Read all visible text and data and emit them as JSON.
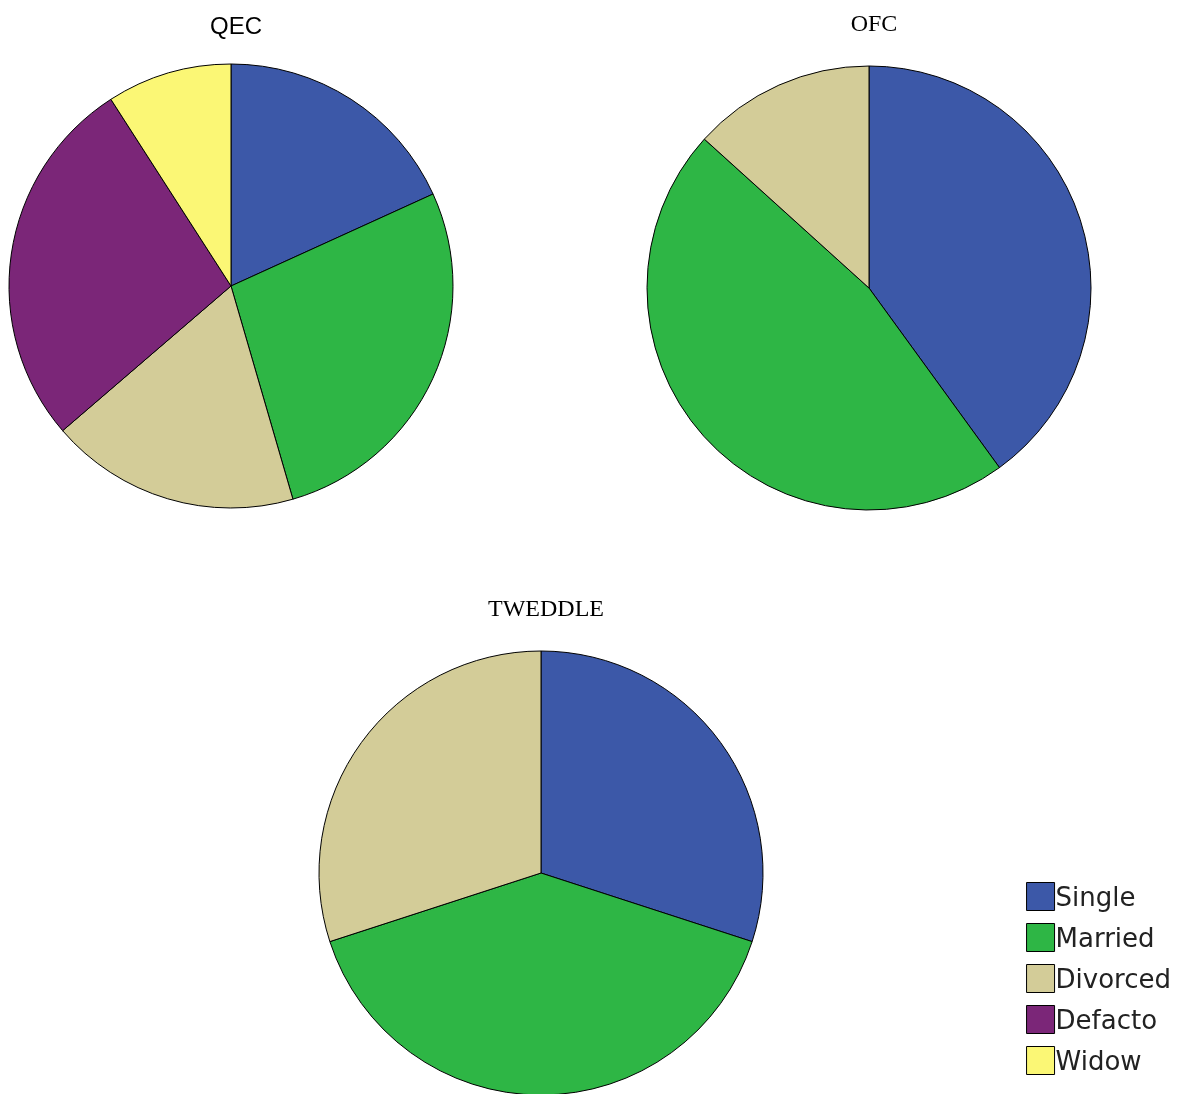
{
  "chart_data": [
    {
      "type": "pie",
      "title": "QEC",
      "categories": [
        "Single",
        "Married",
        "Divorced",
        "Defacto",
        "Widow"
      ],
      "values": [
        18.2,
        27.3,
        18.2,
        27.2,
        9.1
      ],
      "colors": [
        "#3c58a8",
        "#2eb645",
        "#d3cc98",
        "#7b2678",
        "#fbf775"
      ],
      "legend": "bottom right"
    },
    {
      "type": "pie",
      "title": "OFC",
      "categories": [
        null,
        null,
        null
      ],
      "values": [
        40,
        46.7,
        13.3
      ],
      "colors": [
        "#3c58a8",
        "#2eb645",
        "#d3cc98"
      ]
    },
    {
      "type": "pie",
      "title": "TWEDDLE",
      "categories": [
        null,
        null,
        null
      ],
      "values": [
        30,
        40,
        30
      ],
      "colors": [
        "#3c58a8",
        "#2eb645",
        "#d3cc98"
      ]
    }
  ]
}
